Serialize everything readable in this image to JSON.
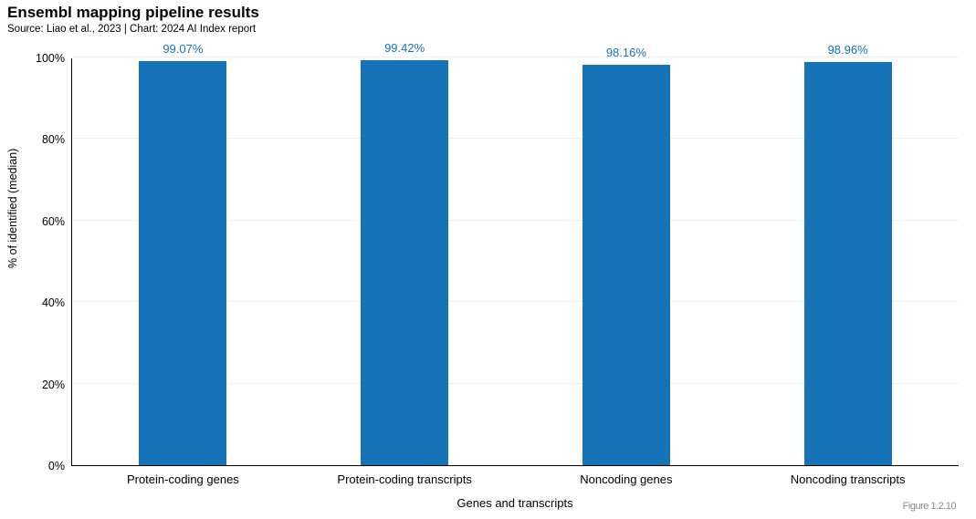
{
  "chart": {
    "title": "Ensembl mapping pipeline results",
    "subtitle": "Source: Liao et al., 2023 | Chart: 2024 AI Index report",
    "figure_caption": "Figure 1.2.10",
    "bar_color": "#1673b8",
    "value_label_color": "#1673b8"
  },
  "chart_data": {
    "type": "bar",
    "title": "Ensembl mapping pipeline results",
    "subtitle": "Source: Liao et al., 2023 | Chart: 2024 AI Index report",
    "categories": [
      "Protein-coding genes",
      "Protein-coding transcripts",
      "Noncoding genes",
      "Noncoding transcripts"
    ],
    "values": [
      99.07,
      99.42,
      98.16,
      98.96
    ],
    "value_labels": [
      "99.07%",
      "99.42%",
      "98.16%",
      "98.96%"
    ],
    "xlabel": "Genes and transcripts",
    "ylabel": "% of identified (median)",
    "ylim": [
      0,
      100
    ],
    "yticks": [
      0,
      20,
      40,
      60,
      80,
      100
    ],
    "ytick_labels": [
      "0%",
      "20%",
      "40%",
      "60%",
      "80%",
      "100%"
    ],
    "grid": true,
    "legend": "none",
    "bar_color": "#1673b8"
  }
}
